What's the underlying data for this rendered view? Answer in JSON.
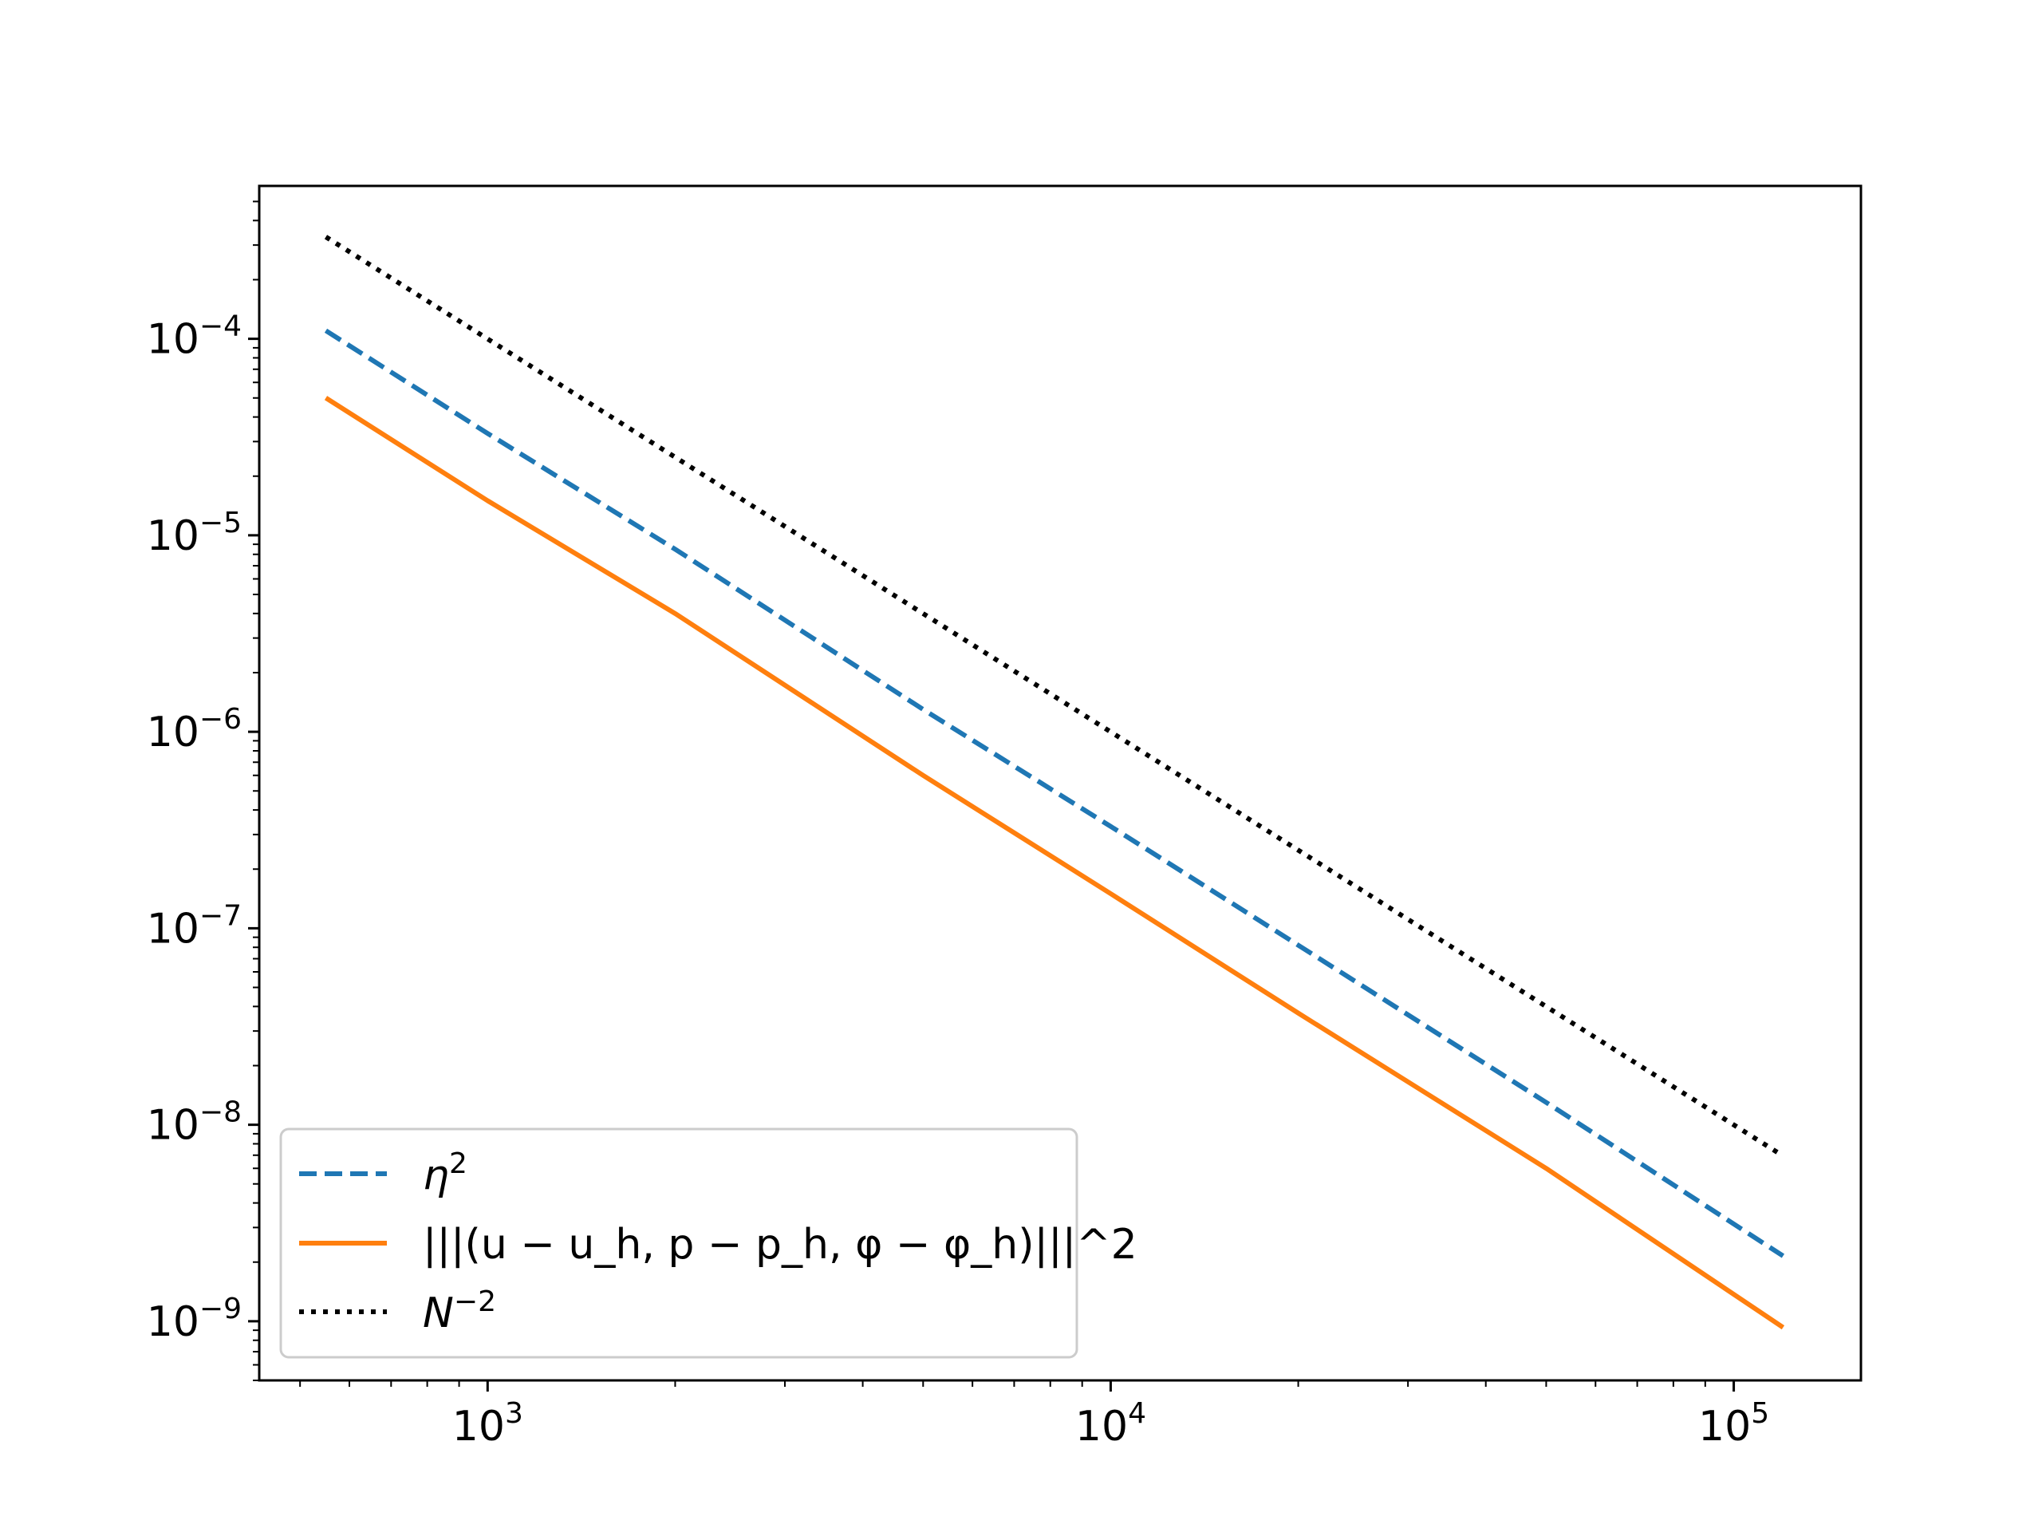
{
  "chart_data": {
    "type": "line",
    "title": "",
    "xlabel": "",
    "ylabel": "",
    "xscale": "log",
    "yscale": "log",
    "xlim": [
      430,
      160000
    ],
    "ylim": [
      5e-10,
      0.0006
    ],
    "grid": false,
    "legend_position": "lower-left",
    "x_ticks": [
      {
        "value": 1000,
        "base": "10",
        "exp": "3"
      },
      {
        "value": 10000,
        "base": "10",
        "exp": "4"
      },
      {
        "value": 100000,
        "base": "10",
        "exp": "5"
      }
    ],
    "y_ticks": [
      {
        "value": 0.0001,
        "base": "10",
        "exp": "−4"
      },
      {
        "value": 1e-05,
        "base": "10",
        "exp": "−5"
      },
      {
        "value": 1e-06,
        "base": "10",
        "exp": "−6"
      },
      {
        "value": 1e-07,
        "base": "10",
        "exp": "−7"
      },
      {
        "value": 1e-08,
        "base": "10",
        "exp": "−8"
      },
      {
        "value": 1e-09,
        "base": "10",
        "exp": "−9"
      }
    ],
    "series": [
      {
        "key": "eta",
        "color": "#1f77b4",
        "style": "dashed",
        "x": [
          550,
          1000,
          2000,
          5000,
          10000,
          20000,
          50000,
          120000
        ],
        "y": [
          0.00011,
          3.3e-05,
          8.5e-06,
          1.3e-06,
          3.3e-07,
          8.2e-08,
          1.3e-08,
          2.15e-09
        ],
        "legend": {
          "base": "η",
          "sup": "2"
        }
      },
      {
        "key": "error",
        "color": "#ff7f0e",
        "style": "solid",
        "x": [
          550,
          1000,
          2000,
          5000,
          10000,
          20000,
          50000,
          120000
        ],
        "y": [
          5e-05,
          1.5e-05,
          4e-06,
          6e-07,
          1.5e-07,
          3.7e-08,
          6e-09,
          9.3e-10
        ],
        "legend": {
          "text": "|||(u − u_h, p − p_h, φ − φ_h)|||^2"
        }
      },
      {
        "key": "ref",
        "color": "#000000",
        "style": "dotted",
        "x": [
          550,
          120000
        ],
        "y": [
          0.00033,
          6.94e-09
        ],
        "legend": {
          "base": "N",
          "sup": "−2"
        }
      }
    ]
  }
}
